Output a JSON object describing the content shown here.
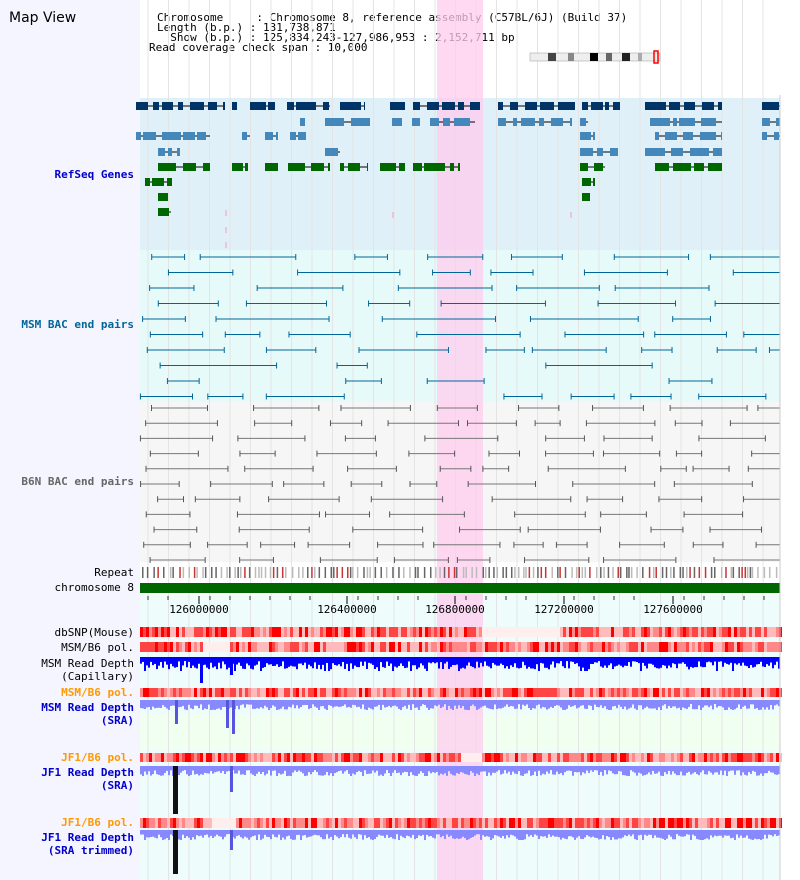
{
  "panel_title": "Map View",
  "header": {
    "line1": "Chromosome     : Chromosome 8, reference assembly (C57BL/6J) (Build 37)",
    "line2": "Length (b.p.) : 131,738,871",
    "line3": "  Show (b.p.) : 125,834,243-127,986,953 : 2,152,711 bp",
    "line4": "Read coverage check span : 10,000"
  },
  "tracks": {
    "refseq": "RefSeq Genes",
    "msm_bac": "MSM BAC end pairs",
    "b6n_bac": "B6N BAC end pairs",
    "repeat": "Repeat",
    "chromosome": "chromosome 8",
    "dbsnp": "dbSNP(Mouse)",
    "msm_b6_pol_1": "MSM/B6 pol.",
    "msm_depth_cap_1": "MSM Read Depth",
    "msm_depth_cap_2": "(Capillary)",
    "msm_b6_pol_2": "MSM/B6 pol.",
    "msm_depth_sra_1": "MSM Read Depth",
    "msm_depth_sra_2": "(SRA)",
    "jf1_b6_pol_1": "JF1/B6 pol.",
    "jf1_depth_sra_1": "JF1 Read Depth",
    "jf1_depth_sra_2": "(SRA)",
    "jf1_b6_pol_2": "JF1/B6 pol.",
    "jf1_depth_trim_1": "JF1 Read Depth",
    "jf1_depth_trim_2": "(SRA trimmed)"
  },
  "axis": {
    "ticks": [
      "126000000",
      "126400000",
      "126800000",
      "127200000",
      "127600000"
    ]
  },
  "colors": {
    "refseq_label": "#0000cc",
    "msm_label": "#006699",
    "b6n_label": "#666666",
    "orange_label": "#ff9900",
    "highlight": "#ffccee",
    "refseq_bg": "#dff0f8",
    "msm_bg": "#e6fafa",
    "gene_dark": "#003366",
    "gene_mid": "#4488bb",
    "gene_green": "#006600",
    "chromosome_bar": "#006600",
    "depth_blue": "#0000ff",
    "depth_light": "#8888ff"
  }
}
